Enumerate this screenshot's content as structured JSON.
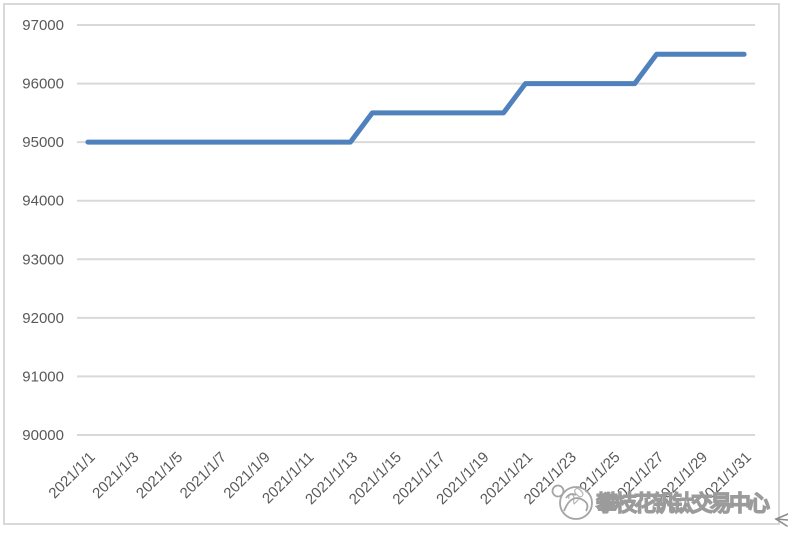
{
  "chart_data": {
    "type": "line",
    "title": "",
    "x": [
      "2021/1/1",
      "2021/1/2",
      "2021/1/3",
      "2021/1/4",
      "2021/1/5",
      "2021/1/6",
      "2021/1/7",
      "2021/1/8",
      "2021/1/9",
      "2021/1/10",
      "2021/1/11",
      "2021/1/12",
      "2021/1/13",
      "2021/1/14",
      "2021/1/15",
      "2021/1/16",
      "2021/1/17",
      "2021/1/18",
      "2021/1/19",
      "2021/1/20",
      "2021/1/21",
      "2021/1/22",
      "2021/1/23",
      "2021/1/24",
      "2021/1/25",
      "2021/1/26",
      "2021/1/27",
      "2021/1/28",
      "2021/1/29",
      "2021/1/30",
      "2021/1/31"
    ],
    "values": [
      95000,
      95000,
      95000,
      95000,
      95000,
      95000,
      95000,
      95000,
      95000,
      95000,
      95000,
      95000,
      95000,
      95500,
      95500,
      95500,
      95500,
      95500,
      95500,
      95500,
      96000,
      96000,
      96000,
      96000,
      96000,
      96000,
      96500,
      96500,
      96500,
      96500,
      96500
    ],
    "x_tick_labels": [
      "2021/1/1",
      "2021/1/3",
      "2021/1/5",
      "2021/1/7",
      "2021/1/9",
      "2021/1/11",
      "2021/1/13",
      "2021/1/15",
      "2021/1/17",
      "2021/1/19",
      "2021/1/21",
      "2021/1/23",
      "2021/1/25",
      "2021/1/27",
      "2021/1/29",
      "2021/1/31"
    ],
    "y_tick_labels": [
      "97000",
      "96000",
      "95000",
      "94000",
      "93000",
      "92000",
      "91000",
      "90000"
    ],
    "ylim": [
      90000,
      97000
    ],
    "y_tick_step": 1000,
    "xlabel": "",
    "ylabel": "",
    "grid": "horizontal",
    "legend": "none"
  },
  "colors": {
    "line": "#4F81BD",
    "gridline": "#D9D9D9",
    "axis_label": "#595959",
    "frame_border": "#D9D9D9",
    "watermark": "#9B9B9B"
  },
  "watermark": {
    "text": "攀枝花钒钛交易中心",
    "logo": "circular-emblem"
  },
  "decoration": {
    "corner_arrow": "left-arrow"
  }
}
